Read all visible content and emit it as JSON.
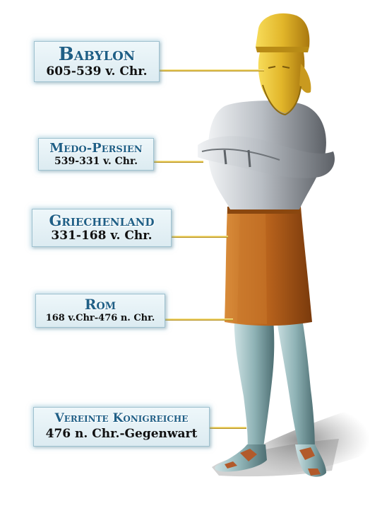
{
  "labels": [
    {
      "name": "Babylon",
      "years": "605-539 v. Chr."
    },
    {
      "name": "Medo-Persien",
      "years": "539-331 v. Chr."
    },
    {
      "name": "Griechenland",
      "years": "331-168 v. Chr."
    },
    {
      "name": "Rom",
      "years": "168 v.Chr-476 n. Chr."
    },
    {
      "name": "Vereinte Konigreiche",
      "years": "476 n. Chr.-Gegenwart"
    }
  ],
  "colors": {
    "gold": "#e2b62a",
    "silver": "#b9bec4",
    "bronze": "#b7621c",
    "iron": "#8fb3b6",
    "label_title": "#1f5f86",
    "label_bg": "#e4f1f6"
  }
}
